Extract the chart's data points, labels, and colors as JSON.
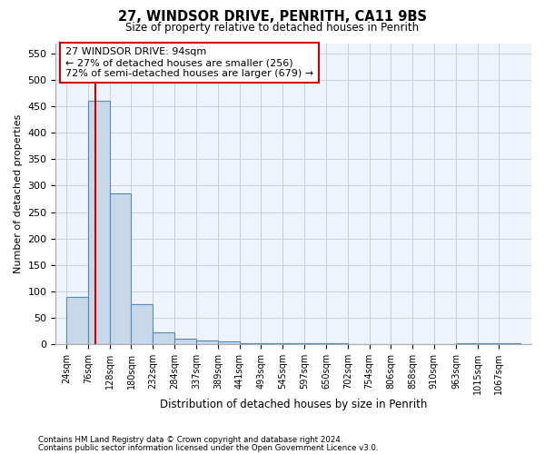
{
  "title1": "27, WINDSOR DRIVE, PENRITH, CA11 9BS",
  "title2": "Size of property relative to detached houses in Penrith",
  "xlabel": "Distribution of detached houses by size in Penrith",
  "ylabel": "Number of detached properties",
  "footnote1": "Contains HM Land Registry data © Crown copyright and database right 2024.",
  "footnote2": "Contains public sector information licensed under the Open Government Licence v3.0.",
  "bin_labels": [
    "24sqm",
    "76sqm",
    "128sqm",
    "180sqm",
    "232sqm",
    "284sqm",
    "337sqm",
    "389sqm",
    "441sqm",
    "493sqm",
    "545sqm",
    "597sqm",
    "650sqm",
    "702sqm",
    "754sqm",
    "806sqm",
    "858sqm",
    "910sqm",
    "963sqm",
    "1015sqm",
    "1067sqm"
  ],
  "bin_edges": [
    24,
    76,
    128,
    180,
    232,
    284,
    337,
    389,
    441,
    493,
    545,
    597,
    650,
    702,
    754,
    806,
    858,
    910,
    963,
    1015,
    1067
  ],
  "bar_heights": [
    90,
    460,
    285,
    75,
    22,
    10,
    7,
    5,
    2,
    1,
    1,
    1,
    1,
    0,
    0,
    0,
    0,
    0,
    1,
    1,
    1
  ],
  "bar_color": "#c8d8e8",
  "bar_edge_color": "#5588bb",
  "property_size": 94,
  "red_line_color": "#cc0000",
  "annotation_line1": "27 WINDSOR DRIVE: 94sqm",
  "annotation_line2": "← 27% of detached houses are smaller (256)",
  "annotation_line3": "72% of semi-detached houses are larger (679) →",
  "annotation_box_color": "#ffffff",
  "annotation_box_edge": "#cc0000",
  "ylim": [
    0,
    570
  ],
  "yticks": [
    0,
    50,
    100,
    150,
    200,
    250,
    300,
    350,
    400,
    450,
    500,
    550
  ],
  "grid_color": "#ccccdd",
  "bg_color": "#eef4fb"
}
